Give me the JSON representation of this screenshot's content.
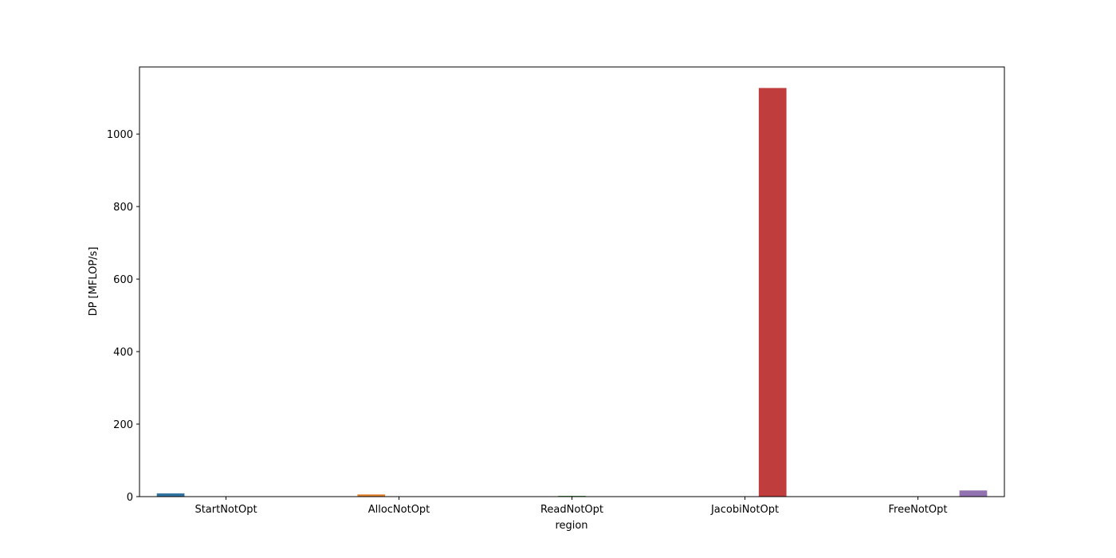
{
  "chart_data": {
    "type": "bar",
    "title": "",
    "xlabel": "region",
    "ylabel": "DP [MFLOP/s]",
    "categories": [
      "StartNotOpt",
      "AllocNotOpt",
      "ReadNotOpt",
      "JacobiNotOpt",
      "FreeNotOpt"
    ],
    "hue_count": 5,
    "series": [
      {
        "values": [
          9,
          0,
          0,
          0,
          0
        ],
        "color": "#3274a1"
      },
      {
        "values": [
          0,
          6,
          0,
          0,
          0
        ],
        "color": "#e1812c"
      },
      {
        "values": [
          0,
          0,
          2,
          0,
          0
        ],
        "color": "#3a923a"
      },
      {
        "values": [
          0,
          0,
          0,
          1127,
          0
        ],
        "color": "#c03d3e"
      },
      {
        "values": [
          0,
          0,
          0,
          0,
          17
        ],
        "color": "#9372b2"
      }
    ],
    "ylim": [
      0,
      1185
    ],
    "yticks": [
      0,
      200,
      400,
      600,
      800,
      1000
    ],
    "grid": false,
    "legend": "none"
  }
}
